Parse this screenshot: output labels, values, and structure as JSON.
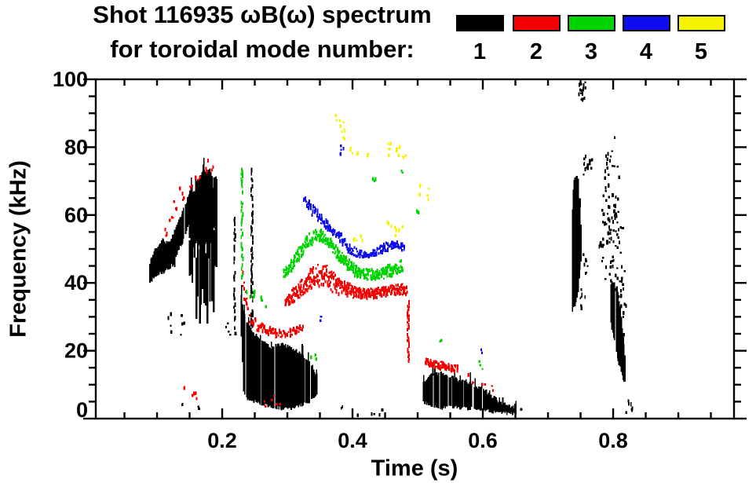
{
  "chart_data": {
    "type": "scatter",
    "title_line1": "Shot 116935 ωB(ω) spectrum",
    "title_line2": "for toroidal mode number:",
    "xlabel": "Time (s)",
    "ylabel": "Frequency (kHz)",
    "legend_position": "top-right",
    "grid": false,
    "x_axis": {
      "min": 0.006,
      "max": 0.9855,
      "major_ticks": [
        0.2,
        0.4,
        0.6,
        0.8
      ],
      "tick_labels": [
        "0.2",
        "0.4",
        "0.6",
        "0.8"
      ],
      "minor_step": 0.05
    },
    "y_axis": {
      "min": 0,
      "max": 100,
      "major_ticks": [
        0,
        20,
        40,
        60,
        80,
        100
      ],
      "minor_step": 5
    },
    "modes": [
      {
        "n": "1",
        "color": "#000000"
      },
      {
        "n": "2",
        "color": "#f50000"
      },
      {
        "n": "3",
        "color": "#00d400"
      },
      {
        "n": "4",
        "color": "#0d0dee"
      },
      {
        "n": "5",
        "color": "#f6f300"
      }
    ],
    "clusters": [
      {
        "mode": 1,
        "style": "solid",
        "d": 1,
        "pts": [
          [
            0.088,
            40,
            46
          ],
          [
            0.096,
            42,
            50
          ],
          [
            0.106,
            43,
            52
          ],
          [
            0.118,
            44,
            52
          ],
          [
            0.126,
            45,
            53
          ]
        ]
      },
      {
        "mode": 1,
        "style": "solid",
        "d": 1,
        "pts": [
          [
            0.118,
            45,
            52
          ],
          [
            0.128,
            48,
            56
          ],
          [
            0.138,
            52,
            61
          ],
          [
            0.148,
            57,
            66
          ],
          [
            0.154,
            60,
            69
          ]
        ]
      },
      {
        "mode": 1,
        "style": "stripes",
        "d": 1,
        "pts": [
          [
            0.148,
            36,
            66
          ],
          [
            0.156,
            30,
            70
          ],
          [
            0.165,
            28,
            73
          ],
          [
            0.175,
            28,
            74
          ],
          [
            0.184,
            30,
            73
          ],
          [
            0.192,
            34,
            71
          ]
        ]
      },
      {
        "mode": 1,
        "style": "solid",
        "d": 1,
        "pts": [
          [
            0.16,
            52,
            70
          ],
          [
            0.17,
            50,
            73
          ],
          [
            0.18,
            54,
            73
          ],
          [
            0.19,
            57,
            70
          ]
        ]
      },
      {
        "mode": 1,
        "style": "dots",
        "d": 1.2,
        "pts": [
          [
            0.118,
            25,
            32
          ],
          [
            0.138,
            24,
            31
          ]
        ]
      },
      {
        "mode": 1,
        "style": "dots",
        "d": 1.0,
        "pts": [
          [
            0.14,
            3,
            6
          ],
          [
            0.166,
            3,
            7
          ]
        ]
      },
      {
        "mode": 1,
        "style": "dots",
        "d": 1.0,
        "pts": [
          [
            0.205,
            25,
            30
          ],
          [
            0.215,
            25,
            30
          ]
        ]
      },
      {
        "mode": 1,
        "style": "vline",
        "d": 0.5,
        "pts": [
          [
            0.218,
            28,
            60
          ]
        ]
      },
      {
        "mode": 1,
        "style": "vline",
        "d": 0.62,
        "pts": [
          [
            0.2445,
            17,
            74
          ]
        ]
      },
      {
        "mode": 1,
        "style": "solid",
        "d": 1,
        "pts": [
          [
            0.2285,
            24,
            36
          ],
          [
            0.232,
            8,
            32
          ],
          [
            0.238,
            6,
            28
          ],
          [
            0.248,
            5,
            25
          ],
          [
            0.26,
            4,
            23
          ],
          [
            0.275,
            3.5,
            21
          ],
          [
            0.29,
            3,
            22
          ],
          [
            0.305,
            3,
            21
          ],
          [
            0.32,
            4,
            19
          ],
          [
            0.333,
            5,
            17
          ],
          [
            0.344,
            7,
            13
          ]
        ]
      },
      {
        "mode": 1,
        "style": "dots",
        "d": 1.2,
        "pts": [
          [
            0.383,
            1,
            4
          ],
          [
            0.408,
            1,
            3
          ],
          [
            0.428,
            1,
            3.5
          ],
          [
            0.443,
            1,
            4
          ]
        ]
      },
      {
        "mode": 1,
        "style": "solid",
        "d": 1,
        "pts": [
          [
            0.508,
            5,
            11
          ],
          [
            0.52,
            3.5,
            13
          ],
          [
            0.535,
            3,
            13.5
          ],
          [
            0.55,
            3.5,
            12.5
          ],
          [
            0.565,
            3,
            11
          ],
          [
            0.58,
            3,
            10.5
          ],
          [
            0.595,
            2.5,
            9
          ],
          [
            0.61,
            2,
            7
          ],
          [
            0.625,
            1.5,
            5
          ],
          [
            0.64,
            1.5,
            3.5
          ],
          [
            0.65,
            1.5,
            2.5
          ]
        ]
      },
      {
        "mode": 1,
        "style": "dots",
        "d": 2.0,
        "pts": [
          [
            0.658,
            2,
            3.5
          ]
        ]
      },
      {
        "mode": 1,
        "style": "solid",
        "d": 1,
        "pts": [
          [
            0.7365,
            32,
            62
          ],
          [
            0.739,
            33,
            70
          ],
          [
            0.742,
            34,
            72
          ],
          [
            0.7455,
            38,
            70
          ],
          [
            0.748,
            44,
            62
          ],
          [
            0.75,
            47,
            56
          ]
        ]
      },
      {
        "mode": 1,
        "style": "dots",
        "d": 2.2,
        "pts": [
          [
            0.752,
            33,
            39
          ],
          [
            0.7555,
            43,
            49
          ],
          [
            0.754,
            72,
            78
          ],
          [
            0.7625,
            72,
            77
          ]
        ]
      },
      {
        "mode": 1,
        "style": "band",
        "d": 2.2,
        "pts": [
          [
            0.7475,
            94,
            100
          ],
          [
            0.7525,
            92,
            100
          ],
          [
            0.757,
            95,
            100
          ]
        ]
      },
      {
        "mode": 1,
        "style": "dots",
        "d": 1.1,
        "spread": 9,
        "pts": [
          [
            0.781,
            46,
            62
          ],
          [
            0.7865,
            44,
            72
          ],
          [
            0.792,
            41,
            80
          ],
          [
            0.7975,
            38,
            84
          ],
          [
            0.803,
            34,
            76
          ],
          [
            0.809,
            28,
            62
          ],
          [
            0.8145,
            22,
            48
          ]
        ]
      },
      {
        "mode": 1,
        "style": "solid",
        "d": 1,
        "pts": [
          [
            0.7955,
            28,
            40
          ],
          [
            0.801,
            23,
            40
          ],
          [
            0.8065,
            17,
            37
          ],
          [
            0.8115,
            14,
            30
          ],
          [
            0.8155,
            11,
            22
          ],
          [
            0.818,
            11,
            16
          ]
        ]
      },
      {
        "mode": 1,
        "style": "dots",
        "d": 1.6,
        "pts": [
          [
            0.8185,
            2,
            6
          ],
          [
            0.8255,
            2,
            5
          ],
          [
            0.8285,
            3,
            5
          ]
        ]
      },
      {
        "mode": 2,
        "style": "dots",
        "d": 1.6,
        "pts": [
          [
            0.111,
            53,
            57
          ],
          [
            0.119,
            57,
            61
          ],
          [
            0.127,
            61,
            65
          ],
          [
            0.137,
            64.5,
            69
          ],
          [
            0.15,
            67,
            71
          ],
          [
            0.162,
            69,
            72.5
          ],
          [
            0.172,
            71,
            75
          ],
          [
            0.181,
            73.5,
            77
          ]
        ]
      },
      {
        "mode": 2,
        "style": "dots",
        "d": 1.2,
        "pts": [
          [
            0.141,
            6,
            10
          ],
          [
            0.152,
            5,
            9
          ],
          [
            0.162,
            5,
            8.5
          ]
        ]
      },
      {
        "mode": 2,
        "style": "band",
        "d": 1.5,
        "pts": [
          [
            0.2295,
            41,
            46
          ],
          [
            0.2325,
            33,
            43
          ],
          [
            0.2375,
            29,
            35
          ],
          [
            0.245,
            26.5,
            31
          ],
          [
            0.255,
            25,
            29
          ],
          [
            0.27,
            24,
            27.5
          ],
          [
            0.285,
            23.5,
            26.5
          ],
          [
            0.3,
            23.5,
            26.5
          ],
          [
            0.313,
            24.5,
            27.5
          ],
          [
            0.324,
            25.5,
            28.5
          ]
        ]
      },
      {
        "mode": 2,
        "style": "dots",
        "d": 1.1,
        "pts": [
          [
            0.262,
            3,
            6.5
          ],
          [
            0.274,
            4,
            8
          ],
          [
            0.284,
            3,
            6
          ]
        ]
      },
      {
        "mode": 2,
        "style": "band",
        "d": 2.6,
        "pts": [
          [
            0.295,
            32,
            35.5
          ],
          [
            0.307,
            33.5,
            38.5
          ],
          [
            0.32,
            35.5,
            41
          ],
          [
            0.332,
            37.5,
            44
          ],
          [
            0.344,
            38.5,
            46
          ],
          [
            0.356,
            38,
            46
          ],
          [
            0.366,
            37,
            44
          ],
          [
            0.378,
            36,
            42
          ],
          [
            0.392,
            35.5,
            40.5
          ],
          [
            0.406,
            35,
            39
          ],
          [
            0.422,
            34.8,
            38.5
          ],
          [
            0.44,
            35.2,
            39
          ],
          [
            0.458,
            35.8,
            39.5
          ],
          [
            0.472,
            36.2,
            40
          ],
          [
            0.482,
            35.8,
            40
          ]
        ]
      },
      {
        "mode": 2,
        "style": "vline",
        "d": 0.8,
        "pts": [
          [
            0.4845,
            17,
            35
          ]
        ]
      },
      {
        "mode": 2,
        "style": "band",
        "d": 2.0,
        "pts": [
          [
            0.511,
            15.5,
            18.5
          ],
          [
            0.524,
            14.5,
            17.5
          ],
          [
            0.538,
            14,
            17
          ],
          [
            0.551,
            13.5,
            16.5
          ],
          [
            0.561,
            13,
            16
          ]
        ]
      },
      {
        "mode": 2,
        "style": "dots",
        "d": 1.6,
        "pts": [
          [
            0.573,
            12,
            14.5
          ],
          [
            0.587,
            10.5,
            12.5
          ],
          [
            0.6,
            9.5,
            11.5
          ],
          [
            0.611,
            8.5,
            10.5
          ]
        ]
      },
      {
        "mode": 3,
        "style": "vline",
        "d": 0.5,
        "pts": [
          [
            0.2295,
            42,
            74
          ]
        ]
      },
      {
        "mode": 3,
        "style": "dots",
        "d": 1.1,
        "pts": [
          [
            0.2395,
            36,
            42
          ],
          [
            0.2505,
            34,
            40
          ],
          [
            0.262,
            33,
            38
          ]
        ]
      },
      {
        "mode": 3,
        "style": "band",
        "d": 2.4,
        "pts": [
          [
            0.294,
            41,
            44.5
          ],
          [
            0.306,
            43,
            47.5
          ],
          [
            0.318,
            46.5,
            51
          ],
          [
            0.33,
            49.5,
            54.5
          ],
          [
            0.342,
            51.5,
            56.5
          ],
          [
            0.354,
            51.5,
            56
          ],
          [
            0.366,
            49,
            53.5
          ],
          [
            0.378,
            46,
            50.5
          ],
          [
            0.39,
            43.5,
            48
          ],
          [
            0.403,
            41.5,
            45.5
          ],
          [
            0.418,
            40.5,
            44.5
          ],
          [
            0.435,
            40.5,
            44.5
          ],
          [
            0.452,
            41,
            45.5
          ],
          [
            0.466,
            42,
            46.5
          ],
          [
            0.477,
            43,
            48
          ]
        ]
      },
      {
        "mode": 3,
        "style": "dots",
        "d": 1.8,
        "pts": [
          [
            0.339,
            17.5,
            20.5
          ],
          [
            0.432,
            69,
            72
          ],
          [
            0.4745,
            71.5,
            74
          ],
          [
            0.501,
            59,
            62.5
          ],
          [
            0.5365,
            21,
            23.5
          ],
          [
            0.5965,
            14,
            17.5
          ]
        ]
      },
      {
        "mode": 4,
        "style": "band",
        "d": 1.7,
        "pts": [
          [
            0.324,
            62,
            66
          ],
          [
            0.336,
            59.5,
            64
          ],
          [
            0.348,
            57.5,
            61.5
          ],
          [
            0.36,
            55,
            59
          ],
          [
            0.372,
            53,
            57
          ],
          [
            0.383,
            50.5,
            55
          ],
          [
            0.393,
            48.5,
            52
          ],
          [
            0.404,
            47.5,
            50.5
          ],
          [
            0.418,
            47,
            49.5
          ],
          [
            0.433,
            47.5,
            50.5
          ],
          [
            0.447,
            48.5,
            52
          ],
          [
            0.459,
            49.5,
            53
          ],
          [
            0.47,
            49.5,
            52.5
          ],
          [
            0.479,
            48.5,
            52
          ]
        ]
      },
      {
        "mode": 4,
        "style": "dots",
        "d": 1.6,
        "pts": [
          [
            0.3775,
            77,
            81
          ],
          [
            0.384,
            79,
            82
          ],
          [
            0.3465,
            28,
            30.5
          ],
          [
            0.597,
            19.5,
            21.5
          ]
        ]
      },
      {
        "mode": 5,
        "style": "dots",
        "d": 1.5,
        "pts": [
          [
            0.3765,
            86,
            91
          ],
          [
            0.382,
            84,
            88
          ],
          [
            0.388,
            81,
            85
          ],
          [
            0.3975,
            77,
            80.5
          ],
          [
            0.408,
            76,
            79
          ],
          [
            0.4225,
            77,
            80
          ],
          [
            0.4575,
            78,
            83
          ],
          [
            0.468,
            76,
            81
          ],
          [
            0.4775,
            75,
            79
          ],
          [
            0.502,
            66.5,
            71
          ],
          [
            0.5115,
            64.5,
            68.5
          ],
          [
            0.402,
            52.5,
            56
          ],
          [
            0.411,
            52,
            55
          ],
          [
            0.456,
            55,
            59
          ],
          [
            0.4665,
            54,
            57.5
          ],
          [
            0.474,
            56,
            58.5
          ]
        ]
      }
    ]
  }
}
